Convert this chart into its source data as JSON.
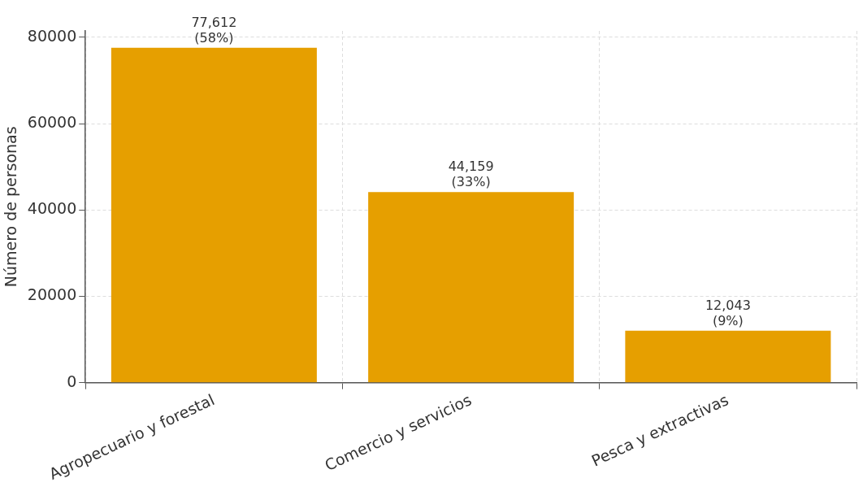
{
  "chart_data": {
    "type": "bar",
    "ylabel": "Número de personas",
    "categories": [
      "Agropecuario y forestal",
      "Comercio y servicios",
      "Pesca y extractivas"
    ],
    "values": [
      77612,
      44159,
      12043
    ],
    "value_labels": [
      "77,612\n(58%)",
      "44,159\n(33%)",
      "12,043\n(9%)"
    ],
    "color": "#e69f00",
    "ylim": [
      0,
      81500
    ],
    "yticks": [
      0,
      20000,
      40000,
      60000,
      80000
    ],
    "grid": true,
    "legend": false
  }
}
